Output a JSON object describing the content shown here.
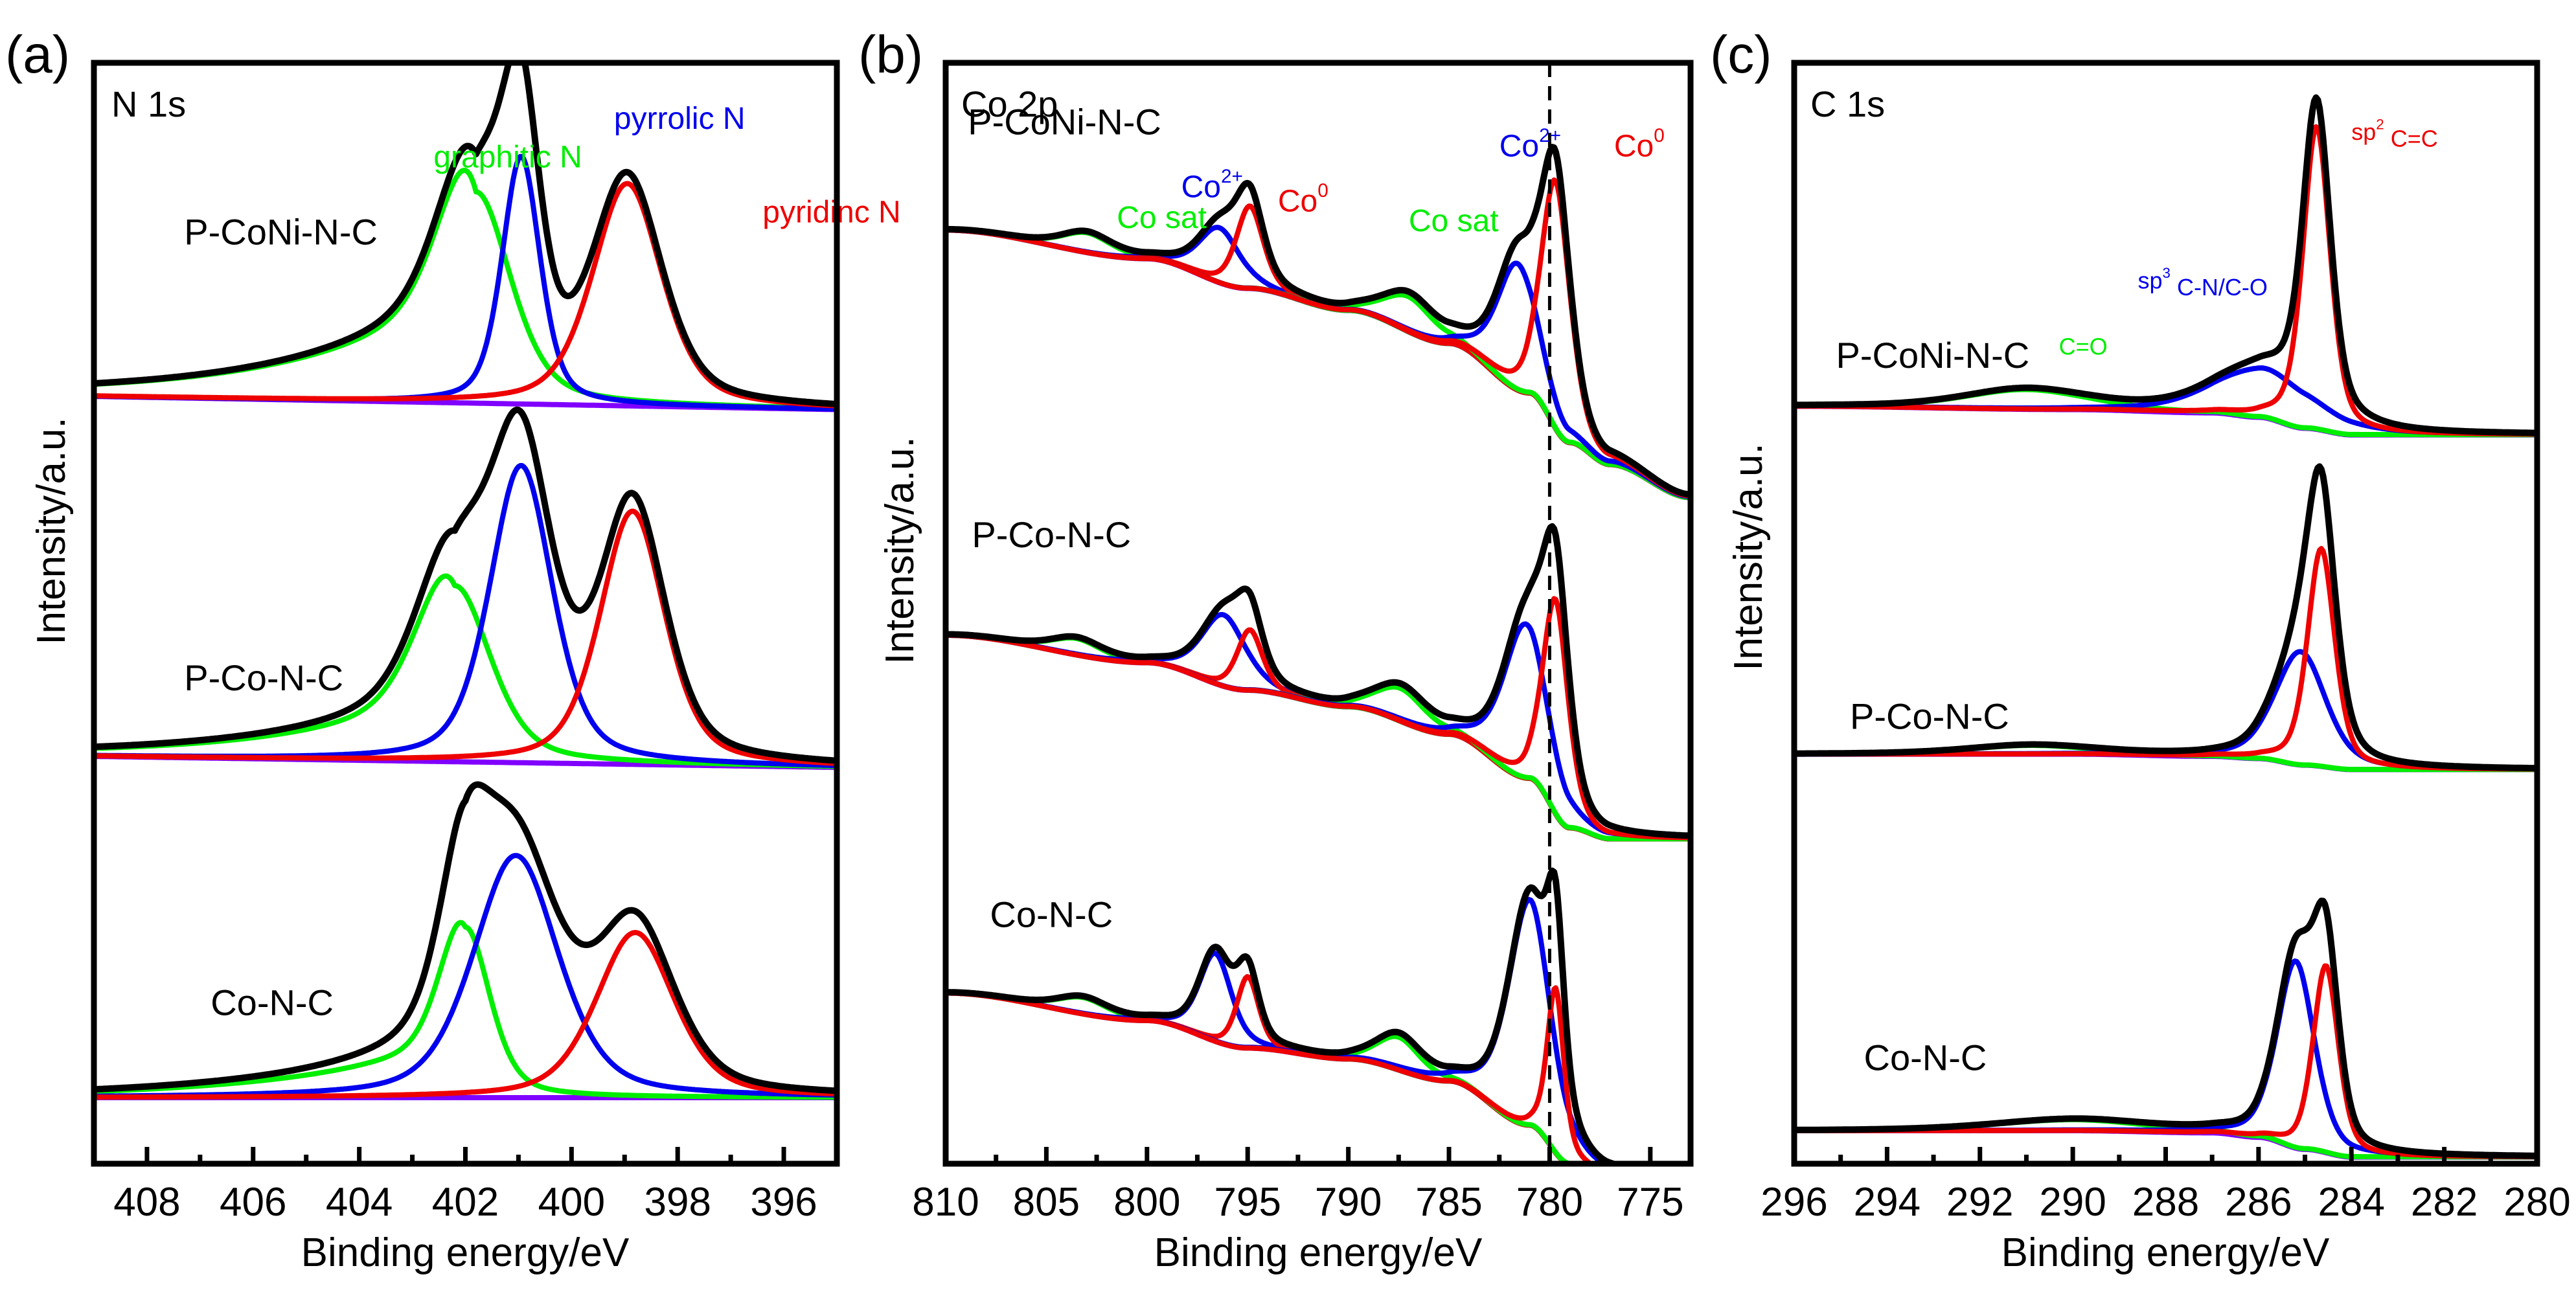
{
  "figure": {
    "panels": [
      "a",
      "b",
      "c"
    ]
  },
  "chart_data": [
    {
      "type": "line",
      "panel_letter": "(a)",
      "title": "N 1s",
      "xlabel": "Binding energy/eV",
      "ylabel": "Intensity/a.u.",
      "xlim": [
        409,
        395
      ],
      "x_reversed": true,
      "xticks_major": [
        408,
        406,
        404,
        402,
        400,
        398,
        396
      ],
      "xticks_minor": [
        407,
        405,
        403,
        401,
        399,
        397
      ],
      "ylim": [
        0,
        10
      ],
      "yticks": [],
      "grid": false,
      "legend": "none",
      "colors": {
        "envelope": "#000000",
        "graphitic": "#00ee00",
        "pyrrolic": "#0000ee",
        "pyridinic": "#ee0000",
        "background": "#8000ff"
      },
      "annotations": [
        {
          "text": "graphitic N",
          "color": "#00ee00",
          "x": 402.6,
          "y": 9.05
        },
        {
          "text": "pyrrolic N",
          "color": "#0000ee",
          "x": 399.2,
          "y": 9.4
        },
        {
          "text": "pyridinc N",
          "color": "#ee0000",
          "x": 396.4,
          "y": 8.55
        }
      ],
      "series": [
        {
          "sample": "P-CoNi-N-C",
          "label_pos": {
            "x": 407.3,
            "y": 8.35
          },
          "offset": 6.85,
          "baseline": {
            "left": 0.12,
            "right": 0.0
          },
          "components": [
            {
              "name": "graphitic N",
              "color": "#00ee00",
              "center": 401.8,
              "height": 1.92,
              "fwhm": 1.55,
              "tail_left": 0.9
            },
            {
              "name": "pyrrolic N",
              "color": "#0000ee",
              "center": 400.95,
              "height": 2.25,
              "fwhm": 0.85,
              "tail_left": 0
            },
            {
              "name": "pyridinic N",
              "color": "#ee0000",
              "center": 398.95,
              "height": 2.02,
              "fwhm": 1.55,
              "tail_left": 0
            }
          ]
        },
        {
          "sample": "P-Co-N-C",
          "label_pos": {
            "x": 407.3,
            "y": 4.3
          },
          "offset": 3.6,
          "baseline": {
            "left": 0.1,
            "right": 0.0
          },
          "components": [
            {
              "name": "graphitic N",
              "color": "#00ee00",
              "center": 402.2,
              "height": 1.6,
              "fwhm": 1.6,
              "tail_left": 0.6
            },
            {
              "name": "pyrrolic N",
              "color": "#0000ee",
              "center": 400.95,
              "height": 2.7,
              "fwhm": 1.4,
              "tail_left": 0
            },
            {
              "name": "pyridinic N",
              "color": "#ee0000",
              "center": 398.85,
              "height": 2.3,
              "fwhm": 1.45,
              "tail_left": 0
            }
          ]
        },
        {
          "sample": "Co-N-C",
          "label_pos": {
            "x": 406.8,
            "y": 1.35
          },
          "offset": 0.6,
          "baseline": {
            "left": 0.0,
            "right": 0.0
          },
          "components": [
            {
              "name": "graphitic N",
              "color": "#00ee00",
              "center": 402.0,
              "height": 1.55,
              "fwhm": 1.1,
              "tail_left": 0.55
            },
            {
              "name": "pyrrolic N",
              "color": "#0000ee",
              "center": 401.05,
              "height": 2.2,
              "fwhm": 1.9,
              "tail_left": 0
            },
            {
              "name": "pyridinic N",
              "color": "#ee0000",
              "center": 398.8,
              "height": 1.5,
              "fwhm": 1.75,
              "tail_left": 0
            }
          ]
        }
      ]
    },
    {
      "type": "line",
      "panel_letter": "(b)",
      "title": "Co 2p",
      "xlabel": "Binding energy/eV",
      "ylabel": "Intensity/a.u.",
      "xlim": [
        810,
        773
      ],
      "x_reversed": true,
      "xticks_major": [
        810,
        805,
        800,
        795,
        790,
        785,
        780,
        775
      ],
      "xticks_minor": [
        807.5,
        802.5,
        797.5,
        792.5,
        787.5,
        782.5,
        777.5
      ],
      "ylim": [
        0,
        10
      ],
      "yticks": [],
      "grid": false,
      "legend": "none",
      "reference_line": {
        "x": 780.0,
        "style": "dashed",
        "color": "#000000"
      },
      "colors": {
        "envelope": "#000000",
        "Co0": "#ee0000",
        "Co2+": "#0000ee",
        "Co sat": "#00ee00",
        "background": "#8000ff"
      },
      "annotations": [
        {
          "text": "Co sat",
          "color": "#00ee00",
          "x": 801.5,
          "y": 8.5
        },
        {
          "text": "Co",
          "sup": "2+",
          "color": "#0000ee",
          "x": 798.3,
          "y": 8.78
        },
        {
          "text": "Co",
          "sup": "0",
          "color": "#ee0000",
          "x": 793.5,
          "y": 8.65
        },
        {
          "text": "Co sat",
          "color": "#00ee00",
          "x": 787.0,
          "y": 8.47
        },
        {
          "text": "Co",
          "sup": "2+",
          "color": "#0000ee",
          "x": 782.5,
          "y": 9.15
        },
        {
          "text": "Co",
          "sup": "0",
          "color": "#ee0000",
          "x": 776.8,
          "y": 9.15
        }
      ],
      "series": [
        {
          "sample": "P-CoNi-N-C",
          "label_pos": {
            "x": 808.9,
            "y": 9.35
          },
          "background": [
            [
              810,
              8.48
            ],
            [
              800,
              8.22
            ],
            [
              795,
              7.95
            ],
            [
              790,
              7.75
            ],
            [
              785,
              7.45
            ],
            [
              781,
              7.0
            ],
            [
              779,
              6.55
            ],
            [
              777,
              6.35
            ],
            [
              773,
              6.05
            ]
          ],
          "components": [
            {
              "name": "Co sat",
              "color": "#00ee00",
              "center": 803.0,
              "height": 0.18,
              "fwhm": 3.0
            },
            {
              "name": "Co2+",
              "color": "#0000ee",
              "center": 796.4,
              "height": 0.5,
              "fwhm": 2.4
            },
            {
              "name": "Co0",
              "color": "#ee0000",
              "center": 794.9,
              "height": 0.75,
              "fwhm": 1.6
            },
            {
              "name": "Co sat",
              "color": "#00ee00",
              "center": 787.0,
              "height": 0.32,
              "fwhm": 3.0
            },
            {
              "name": "Co2+",
              "color": "#0000ee",
              "center": 781.6,
              "height": 1.15,
              "fwhm": 2.4
            },
            {
              "name": "Co0",
              "color": "#ee0000",
              "center": 779.7,
              "height": 2.25,
              "fwhm": 1.7
            }
          ]
        },
        {
          "sample": "P-Co-N-C",
          "label_pos": {
            "x": 808.7,
            "y": 5.6
          },
          "background": [
            [
              810,
              4.8
            ],
            [
              800,
              4.55
            ],
            [
              795,
              4.3
            ],
            [
              790,
              4.15
            ],
            [
              785,
              3.9
            ],
            [
              781,
              3.5
            ],
            [
              779,
              3.05
            ],
            [
              777,
              2.95
            ],
            [
              773,
              2.95
            ]
          ],
          "components": [
            {
              "name": "Co sat",
              "color": "#00ee00",
              "center": 803.5,
              "height": 0.15,
              "fwhm": 3.0
            },
            {
              "name": "Co2+",
              "color": "#0000ee",
              "center": 796.2,
              "height": 0.65,
              "fwhm": 2.6
            },
            {
              "name": "Co0",
              "color": "#ee0000",
              "center": 794.9,
              "height": 0.55,
              "fwhm": 1.5
            },
            {
              "name": "Co sat",
              "color": "#00ee00",
              "center": 787.4,
              "height": 0.3,
              "fwhm": 3.0
            },
            {
              "name": "Co2+",
              "color": "#0000ee",
              "center": 781.2,
              "height": 1.4,
              "fwhm": 2.6
            },
            {
              "name": "Co0",
              "color": "#ee0000",
              "center": 779.7,
              "height": 1.95,
              "fwhm": 1.5
            }
          ]
        },
        {
          "sample": "Co-N-C",
          "label_pos": {
            "x": 807.8,
            "y": 2.15
          },
          "background": [
            [
              810,
              1.55
            ],
            [
              800,
              1.3
            ],
            [
              795,
              1.05
            ],
            [
              790,
              0.95
            ],
            [
              785,
              0.75
            ],
            [
              781,
              0.35
            ],
            [
              779,
              0.0
            ],
            [
              777,
              -0.1
            ],
            [
              773,
              -0.2
            ]
          ],
          "components": [
            {
              "name": "Co sat",
              "color": "#00ee00",
              "center": 803.2,
              "height": 0.15,
              "fwhm": 3.0
            },
            {
              "name": "Co2+",
              "color": "#0000ee",
              "center": 796.6,
              "height": 0.8,
              "fwhm": 1.9
            },
            {
              "name": "Co0",
              "color": "#ee0000",
              "center": 795.0,
              "height": 0.65,
              "fwhm": 1.3
            },
            {
              "name": "Co sat",
              "color": "#00ee00",
              "center": 787.5,
              "height": 0.3,
              "fwhm": 2.6
            },
            {
              "name": "Co2+",
              "color": "#0000ee",
              "center": 781.0,
              "height": 2.05,
              "fwhm": 2.5
            },
            {
              "name": "Co0",
              "color": "#ee0000",
              "center": 779.7,
              "height": 1.5,
              "fwhm": 1.0
            }
          ]
        }
      ]
    },
    {
      "type": "line",
      "panel_letter": "(c)",
      "title": "C 1s",
      "xlabel": "Binding energy/eV",
      "ylabel": "Intensity/a.u.",
      "xlim": [
        296,
        280
      ],
      "x_reversed": true,
      "xticks_major": [
        296,
        294,
        292,
        290,
        288,
        286,
        284,
        282,
        280
      ],
      "xticks_minor": [
        295,
        293,
        291,
        289,
        287,
        285,
        283,
        281
      ],
      "ylim": [
        0,
        10
      ],
      "yticks": [],
      "grid": false,
      "legend": "none",
      "colors": {
        "envelope": "#000000",
        "sp2 C=C": "#ee0000",
        "sp3 C-N/C-O": "#0000ee",
        "C=O": "#00ee00",
        "background": "#8000ff"
      },
      "annotations": [
        {
          "text": "sp",
          "sup": "2",
          "rest": " C=C",
          "color": "#ee0000",
          "x": 284.0,
          "y": 9.3
        },
        {
          "text": "sp",
          "sup": "3",
          "rest": " C-N/C-O",
          "color": "#0000ee",
          "x": 288.6,
          "y": 7.95
        },
        {
          "text": "C=O",
          "color": "#00ee00",
          "x": 290.3,
          "y": 7.35
        }
      ],
      "series": [
        {
          "sample": "P-CoNi-N-C",
          "label_pos": {
            "x": 295.1,
            "y": 7.23
          },
          "background": [
            [
              296,
              6.88
            ],
            [
              290,
              6.85
            ],
            [
              287,
              6.82
            ],
            [
              286,
              6.78
            ],
            [
              285,
              6.68
            ],
            [
              284,
              6.62
            ],
            [
              280,
              6.62
            ]
          ],
          "components": [
            {
              "name": "C=O",
              "color": "#00ee00",
              "center": 291.0,
              "height": 0.18,
              "fwhm": 3.2
            },
            {
              "name": "sp3 C-N/C-O",
              "color": "#0000ee",
              "center": 285.9,
              "height": 0.45,
              "fwhm": 2.6
            },
            {
              "name": "sp2 C=C",
              "color": "#ee0000",
              "center": 284.75,
              "height": 2.75,
              "fwhm": 0.7
            }
          ]
        },
        {
          "sample": "P-Co-N-C",
          "label_pos": {
            "x": 294.8,
            "y": 3.95
          },
          "background": [
            [
              296,
              3.72
            ],
            [
              290,
              3.72
            ],
            [
              287,
              3.7
            ],
            [
              286,
              3.68
            ],
            [
              285,
              3.62
            ],
            [
              284,
              3.58
            ],
            [
              280,
              3.58
            ]
          ],
          "components": [
            {
              "name": "C=O",
              "color": "#00ee00",
              "center": 290.9,
              "height": 0.08,
              "fwhm": 3.2
            },
            {
              "name": "sp3 C-N/C-O",
              "color": "#0000ee",
              "center": 285.1,
              "height": 1.03,
              "fwhm": 1.3
            },
            {
              "name": "sp2 C=C",
              "color": "#ee0000",
              "center": 284.65,
              "height": 1.98,
              "fwhm": 0.7
            }
          ]
        },
        {
          "sample": "Co-N-C",
          "label_pos": {
            "x": 294.5,
            "y": 0.85
          },
          "background": [
            [
              296,
              0.3
            ],
            [
              290,
              0.3
            ],
            [
              287,
              0.28
            ],
            [
              286,
              0.24
            ],
            [
              285,
              0.13
            ],
            [
              284,
              0.06
            ],
            [
              280,
              0.06
            ]
          ],
          "components": [
            {
              "name": "C=O",
              "color": "#00ee00",
              "center": 290.0,
              "height": 0.1,
              "fwhm": 4.0
            },
            {
              "name": "sp3 C-N/C-O",
              "color": "#0000ee",
              "center": 285.2,
              "height": 1.7,
              "fwhm": 0.95
            },
            {
              "name": "sp2 C=C",
              "color": "#ee0000",
              "center": 284.55,
              "height": 1.7,
              "fwhm": 0.65
            }
          ]
        }
      ]
    }
  ]
}
